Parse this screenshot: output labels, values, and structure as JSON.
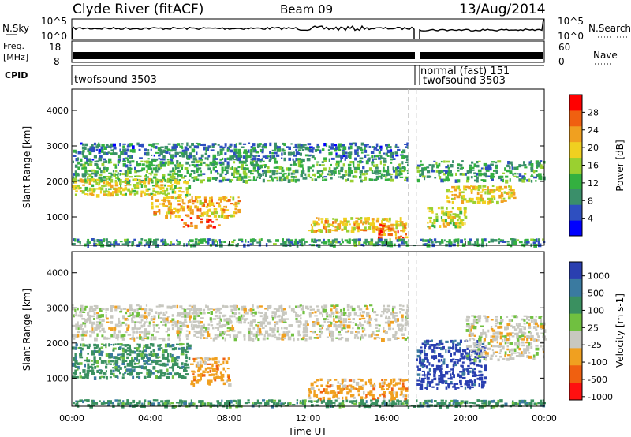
{
  "header": {
    "station": "Clyde River (fitACF)",
    "beam": "Beam 09",
    "date": "13/Aug/2014"
  },
  "top_panels": {
    "nsky": {
      "label": "N.Sky",
      "left_ticks": [
        "10^5",
        "10^0"
      ],
      "right_ticks": [
        "10^5",
        "10^0"
      ],
      "right_label": "N.Search"
    },
    "freq": {
      "label_line1": "Freq.",
      "label_line2": "[MHz]",
      "left_ticks": [
        "18",
        "8"
      ],
      "right_ticks": [
        "60",
        "0"
      ],
      "right_label": "Nave"
    },
    "cpid": {
      "label": "CPID",
      "segments": [
        {
          "name": "twofsound 3503",
          "start_hour": 0.0,
          "end_hour": 17.1
        },
        {
          "name": "normal (fast) 151",
          "start_hour": 17.1,
          "end_hour": 17.4
        },
        {
          "name": "twofsound 3503",
          "start_hour": 17.4,
          "end_hour": 24.0
        }
      ]
    }
  },
  "chart_data": [
    {
      "type": "heatmap",
      "name": "power",
      "xlabel": "",
      "ylabel": "Slant Range [km]",
      "xlim": [
        0,
        24
      ],
      "ylim": [
        200,
        4600
      ],
      "yticks": [
        1000,
        2000,
        3000,
        4000
      ],
      "x_unit": "hours UT",
      "colorbar": {
        "label": "Power [dB]",
        "range": [
          0,
          32
        ],
        "ticks": [
          4,
          8,
          12,
          16,
          20,
          24,
          28
        ],
        "colors": [
          "#0000ff",
          "#2e4fc0",
          "#3a8f6a",
          "#33b040",
          "#9ad030",
          "#f0d020",
          "#f0a020",
          "#f06010",
          "#ff0000"
        ]
      },
      "data_gap_hours": [
        17.1,
        17.5
      ],
      "bands": [
        {
          "x": [
            0.0,
            17.1
          ],
          "range_km": [
            2600,
            3100
          ],
          "value": 7
        },
        {
          "x": [
            0.0,
            17.1
          ],
          "range_km": [
            2000,
            2600
          ],
          "value": 11
        },
        {
          "x": [
            0.0,
            6.0
          ],
          "range_km": [
            1600,
            2100
          ],
          "value": 18
        },
        {
          "x": [
            4.0,
            8.5
          ],
          "range_km": [
            1000,
            1600
          ],
          "value": 22
        },
        {
          "x": [
            5.5,
            7.5
          ],
          "range_km": [
            700,
            1000
          ],
          "value": 28
        },
        {
          "x": [
            12.0,
            17.0
          ],
          "range_km": [
            600,
            1000
          ],
          "value": 21
        },
        {
          "x": [
            15.5,
            17.0
          ],
          "range_km": [
            400,
            800
          ],
          "value": 27
        },
        {
          "x": [
            17.5,
            24.0
          ],
          "range_km": [
            2000,
            2600
          ],
          "value": 10
        },
        {
          "x": [
            19.0,
            22.5
          ],
          "range_km": [
            1400,
            1900
          ],
          "value": 20
        },
        {
          "x": [
            18.0,
            20.0
          ],
          "range_km": [
            700,
            1300
          ],
          "value": 18
        },
        {
          "x": [
            0.0,
            24.0
          ],
          "range_km": [
            200,
            400
          ],
          "value": 9
        }
      ]
    },
    {
      "type": "heatmap",
      "name": "velocity",
      "xlabel": "Time UT",
      "ylabel": "Slant Range [km]",
      "xlim": [
        0,
        24
      ],
      "ylim": [
        200,
        4600
      ],
      "xticks": [
        "00:00",
        "04:00",
        "08:00",
        "12:00",
        "16:00",
        "20:00",
        "00:00"
      ],
      "xtick_hours": [
        0,
        4,
        8,
        12,
        16,
        20,
        24
      ],
      "yticks": [
        1000,
        2000,
        3000,
        4000
      ],
      "colorbar": {
        "label": "Velocity [m s-1]",
        "ticks": [
          "1000",
          "500",
          "100",
          "25",
          "-25",
          "-100",
          "-500",
          "-1000"
        ],
        "colors": [
          "#2a3fb0",
          "#3a7aa0",
          "#3a9060",
          "#70c040",
          "#c8c8c0",
          "#f0a020",
          "#f06010",
          "#ff1010"
        ]
      },
      "data_gap_hours": [
        17.1,
        17.5
      ],
      "bands": [
        {
          "x": [
            0.0,
            17.1
          ],
          "range_km": [
            2100,
            3100
          ],
          "value": "~0"
        },
        {
          "x": [
            0.0,
            6.0
          ],
          "range_km": [
            1000,
            2000
          ],
          "value": "100"
        },
        {
          "x": [
            6.0,
            8.0
          ],
          "range_km": [
            800,
            1600
          ],
          "value": "-100"
        },
        {
          "x": [
            12.0,
            17.0
          ],
          "range_km": [
            400,
            1000
          ],
          "value": "-100"
        },
        {
          "x": [
            17.5,
            21.0
          ],
          "range_km": [
            700,
            2100
          ],
          "value": "1000"
        },
        {
          "x": [
            20.0,
            24.0
          ],
          "range_km": [
            1500,
            2800
          ],
          "value": "~0"
        },
        {
          "x": [
            0.0,
            24.0
          ],
          "range_km": [
            200,
            400
          ],
          "value": "100"
        }
      ]
    }
  ]
}
